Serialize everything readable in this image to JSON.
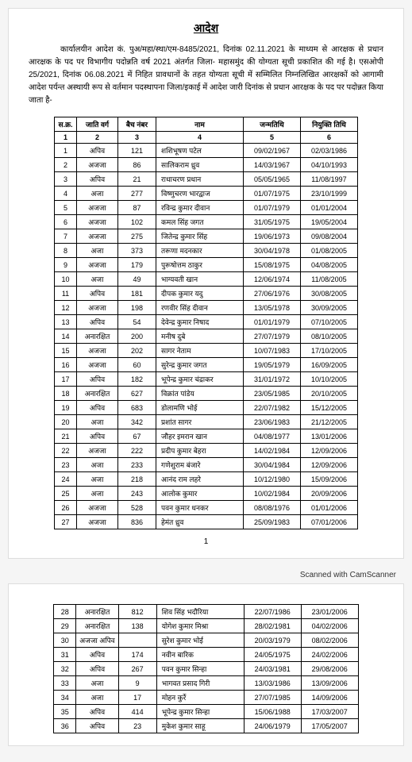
{
  "title": "आदेश",
  "paragraph": "कार्यालयीन आदेश कं. पुअ/महा/स्था/एम-8485/2021, दिनांक 02.11.2021 के माध्यम से आरक्षक से प्रधान आरक्षक के पद पर विभागीय पदोन्नति वर्ष 2021 अंतर्गत जिला- महासमुंद की योग्यता सूची प्रकाशित की गई है। एसओपी 25/2021, दिनांक 06.08.2021 में निहित प्रावधानों के तहत योग्यता सूची में सम्मिलित निम्नलिखित आरक्षकों को आगामी आदेश पर्यन्त अस्थायी रूप से वर्तमान पदस्थापना जिला/इकाई में आदेश जारी दिनांक से प्रधान आरक्षक के पद पर पदोन्नत किया जाता है-",
  "columns": [
    "स.क्र.",
    "जाति वर्ग",
    "बैच नंबर",
    "नाम",
    "जन्मतिथि",
    "नियुक्ति तिथि"
  ],
  "subhead": [
    "1",
    "2",
    "3",
    "4",
    "5",
    "6"
  ],
  "rows1": [
    [
      "1",
      "अपिव",
      "121",
      "शशिभूषण पटेल",
      "09/02/1967",
      "02/03/1986"
    ],
    [
      "2",
      "अजजा",
      "86",
      "सालिकराम ध्रुव",
      "14/03/1967",
      "04/10/1993"
    ],
    [
      "3",
      "अपिव",
      "21",
      "राधाचरण प्रधान",
      "05/05/1965",
      "11/08/1997"
    ],
    [
      "4",
      "अजा",
      "277",
      "विष्णुचरण भारद्वाज",
      "01/07/1975",
      "23/10/1999"
    ],
    [
      "5",
      "अजजा",
      "87",
      "रविन्द्र कुमार दीवान",
      "01/07/1979",
      "01/01/2004"
    ],
    [
      "6",
      "अजजा",
      "102",
      "कमल सिंह जगत",
      "31/05/1975",
      "19/05/2004"
    ],
    [
      "7",
      "अजजा",
      "275",
      "जितेन्द्र कुमार सिंह",
      "19/06/1973",
      "09/08/2004"
    ],
    [
      "8",
      "अजा",
      "373",
      "तरूणा मदनकार",
      "30/04/1978",
      "01/08/2005"
    ],
    [
      "9",
      "अजजा",
      "179",
      "पुरूषोत्तम ठाकुर",
      "15/08/1975",
      "04/08/2005"
    ],
    [
      "10",
      "अजा",
      "49",
      "भाग्यवती खान",
      "12/06/1974",
      "11/08/2005"
    ],
    [
      "11",
      "अपिव",
      "181",
      "दीपक कुमार यदु",
      "27/06/1976",
      "30/08/2005"
    ],
    [
      "12",
      "अजजा",
      "198",
      "रणवीर सिंह दीवान",
      "13/05/1978",
      "30/09/2005"
    ],
    [
      "13",
      "अपिव",
      "54",
      "देवेन्द्र कुमार निषाद",
      "01/01/1979",
      "07/10/2005"
    ],
    [
      "14",
      "अनारक्षित",
      "200",
      "मनीष दुबे",
      "27/07/1979",
      "08/10/2005"
    ],
    [
      "15",
      "अजजा",
      "202",
      "सागर नेताम",
      "10/07/1983",
      "17/10/2005"
    ],
    [
      "16",
      "अजजा",
      "60",
      "सुरेन्द्र कुमार जगत",
      "19/05/1979",
      "16/09/2005"
    ],
    [
      "17",
      "अपिव",
      "182",
      "भूपेन्द्र कुमार चंद्राकर",
      "31/01/1972",
      "10/10/2005"
    ],
    [
      "18",
      "अनारक्षित",
      "627",
      "विक्रांत पांडेय",
      "23/05/1985",
      "20/10/2005"
    ],
    [
      "19",
      "अपिव",
      "683",
      "डोलामणि भोई",
      "22/07/1982",
      "15/12/2005"
    ],
    [
      "20",
      "अजा",
      "342",
      "प्रशांत सागर",
      "23/06/1983",
      "21/12/2005"
    ],
    [
      "21",
      "अपिव",
      "67",
      "जौहर इमरान खान",
      "04/08/1977",
      "13/01/2006"
    ],
    [
      "22",
      "अजजा",
      "222",
      "प्रदीप कुमार बेहरा",
      "14/02/1984",
      "12/09/2006"
    ],
    [
      "23",
      "अजा",
      "233",
      "गणेशुराम बंजारे",
      "30/04/1984",
      "12/09/2006"
    ],
    [
      "24",
      "अजा",
      "218",
      "आनंद राम लहरे",
      "10/12/1980",
      "15/09/2006"
    ],
    [
      "25",
      "अजा",
      "243",
      "आलोक कुमार",
      "10/02/1984",
      "20/09/2006"
    ],
    [
      "26",
      "अजजा",
      "528",
      "पवन कुमार धनकर",
      "08/08/1976",
      "01/01/2006"
    ],
    [
      "27",
      "अजजा",
      "836",
      "हेमंत ध्रुव",
      "25/09/1983",
      "07/01/2006"
    ]
  ],
  "rows2": [
    [
      "28",
      "अनारक्षित",
      "812",
      "शिव सिंह भदौरिया",
      "22/07/1986",
      "23/01/2006"
    ],
    [
      "29",
      "अनारक्षित",
      "138",
      "योगेश कुमार मिश्रा",
      "28/02/1981",
      "04/02/2006"
    ],
    [
      "30",
      "अजजा  अपिव",
      "",
      "सुरेश कुमार भोई",
      "20/03/1979",
      "08/02/2006"
    ],
    [
      "31",
      "अपिव",
      "174",
      "नवीन बारिक",
      "24/05/1975",
      "24/02/2006"
    ],
    [
      "32",
      "अपिव",
      "267",
      "पवन कुमार सिन्हा",
      "24/03/1981",
      "29/08/2006"
    ],
    [
      "33",
      "अजा",
      "9",
      "भागवत प्रसाद गिरी",
      "13/03/1986",
      "13/09/2006"
    ],
    [
      "34",
      "अजा",
      "17",
      "मोहन कुर्रे",
      "27/07/1985",
      "14/09/2006"
    ],
    [
      "35",
      "अपिव",
      "414",
      "भूपेन्द्र कुमार सिन्हा",
      "15/06/1988",
      "17/03/2007"
    ],
    [
      "36",
      "अपिव",
      "23",
      "मुकेश कुमार साहू",
      "24/06/1979",
      "17/05/2007"
    ]
  ],
  "pagenum": "1",
  "scan_note": "Scanned with CamScanner"
}
